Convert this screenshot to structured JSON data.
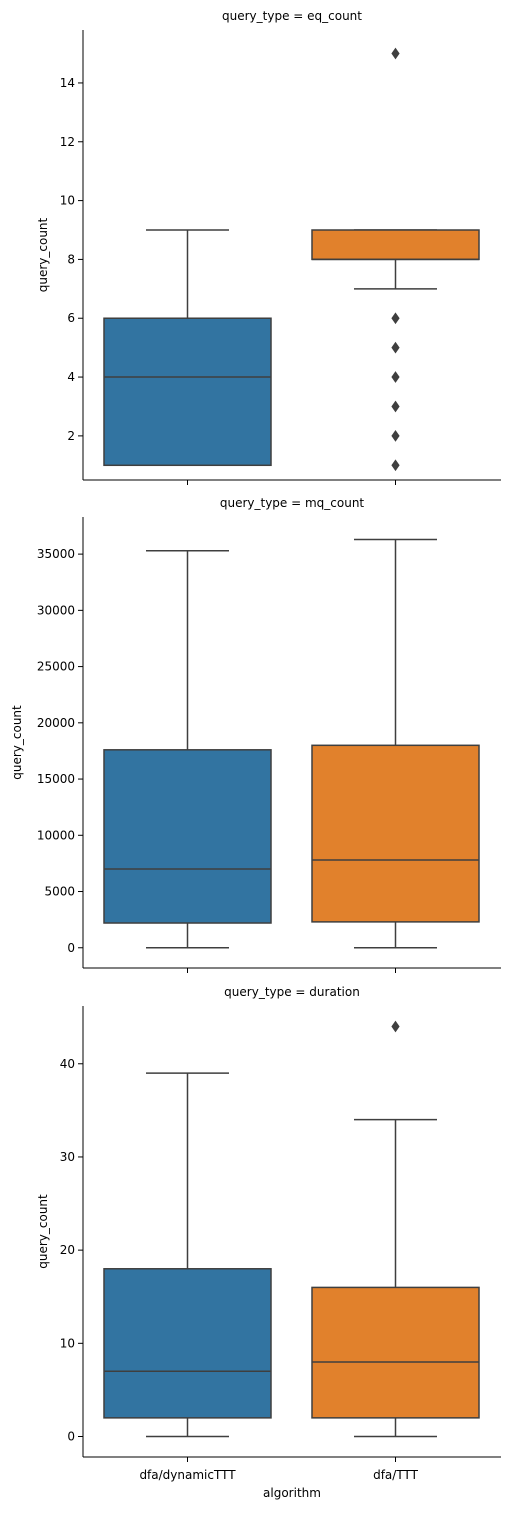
{
  "chart_data": [
    {
      "type": "box",
      "title": "query_type = eq_count",
      "ylabel": "query_count",
      "xlabel": "",
      "categories": [
        "dfa/dynamicTTT",
        "dfa/TTT"
      ],
      "ylim": [
        0.5,
        15.8
      ],
      "yticks": [
        2,
        4,
        6,
        8,
        10,
        12,
        14
      ],
      "show_xtick_labels": false,
      "boxes": [
        {
          "category": "dfa/dynamicTTT",
          "whisker_low": 1,
          "q1": 1,
          "median": 4,
          "q3": 6,
          "whisker_high": 9,
          "outliers": [],
          "color": "#3274a1"
        },
        {
          "category": "dfa/TTT",
          "whisker_low": 7,
          "q1": 8,
          "median": 8,
          "q3": 9,
          "whisker_high": 9,
          "outliers": [
            1,
            2,
            3,
            4,
            5,
            6,
            15
          ],
          "color": "#e1812c"
        }
      ]
    },
    {
      "type": "box",
      "title": "query_type = mq_count",
      "ylabel": "query_count",
      "xlabel": "",
      "categories": [
        "dfa/dynamicTTT",
        "dfa/TTT"
      ],
      "ylim": [
        -1800,
        38300
      ],
      "yticks": [
        0,
        5000,
        10000,
        15000,
        20000,
        25000,
        30000,
        35000
      ],
      "show_xtick_labels": false,
      "boxes": [
        {
          "category": "dfa/dynamicTTT",
          "whisker_low": 0,
          "q1": 2200,
          "median": 7000,
          "q3": 17600,
          "whisker_high": 35300,
          "outliers": [],
          "color": "#3274a1"
        },
        {
          "category": "dfa/TTT",
          "whisker_low": 0,
          "q1": 2300,
          "median": 7800,
          "q3": 18000,
          "whisker_high": 36300,
          "outliers": [],
          "color": "#e1812c"
        }
      ]
    },
    {
      "type": "box",
      "title": "query_type = duration",
      "ylabel": "query_count",
      "xlabel": "algorithm",
      "categories": [
        "dfa/dynamicTTT",
        "dfa/TTT"
      ],
      "ylim": [
        -2.2,
        46.2
      ],
      "yticks": [
        0,
        10,
        20,
        30,
        40
      ],
      "show_xtick_labels": true,
      "boxes": [
        {
          "category": "dfa/dynamicTTT",
          "whisker_low": 0,
          "q1": 2,
          "median": 7,
          "q3": 18,
          "whisker_high": 39,
          "outliers": [],
          "color": "#3274a1"
        },
        {
          "category": "dfa/TTT",
          "whisker_low": 0,
          "q1": 2,
          "median": 8,
          "q3": 16,
          "whisker_high": 34,
          "outliers": [
            44
          ],
          "color": "#e1812c"
        }
      ]
    }
  ]
}
